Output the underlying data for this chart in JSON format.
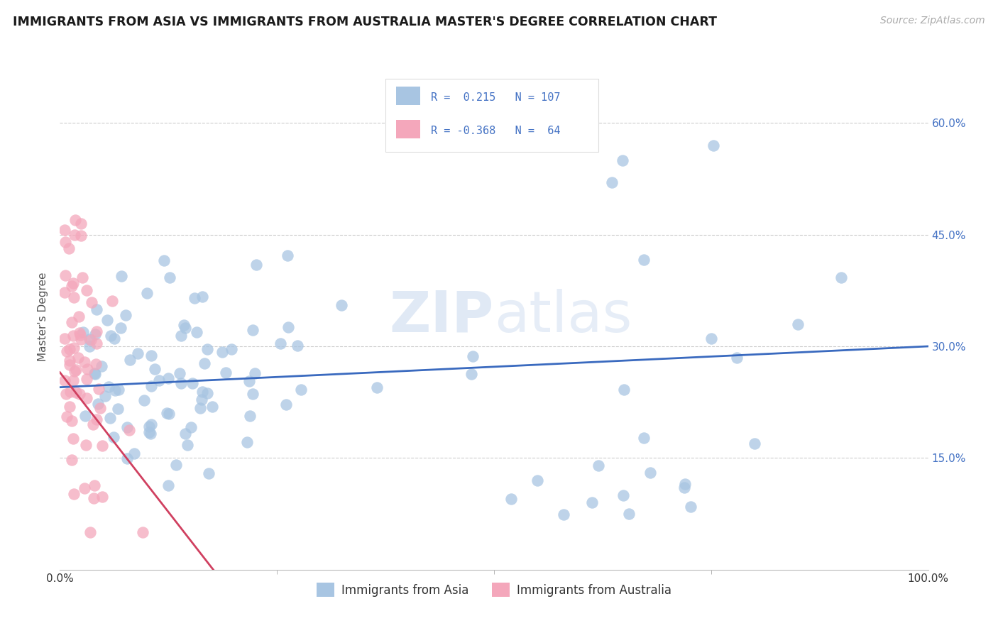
{
  "title": "IMMIGRANTS FROM ASIA VS IMMIGRANTS FROM AUSTRALIA MASTER'S DEGREE CORRELATION CHART",
  "source": "Source: ZipAtlas.com",
  "ylabel": "Master's Degree",
  "y_ticks": [
    "15.0%",
    "30.0%",
    "45.0%",
    "60.0%"
  ],
  "y_tick_vals": [
    0.15,
    0.3,
    0.45,
    0.6
  ],
  "x_range": [
    0.0,
    1.0
  ],
  "y_range": [
    0.0,
    0.68
  ],
  "watermark": "ZIPatlas",
  "asia_color": "#a8c5e2",
  "australia_color": "#f4a7bb",
  "asia_line_color": "#3a6abf",
  "australia_line_color": "#d04060",
  "background_color": "#ffffff",
  "grid_color": "#cccccc",
  "title_color": "#1a1a1a",
  "source_color": "#aaaaaa",
  "ylabel_color": "#555555",
  "ytick_color": "#4472c4",
  "xtick_color": "#333333",
  "legend_edge_color": "#dddddd",
  "N_asia": 107,
  "N_aus": 64,
  "asia_seed": 42,
  "aus_seed": 7,
  "watermark_color": "#d8e4f0",
  "watermark_alpha": 0.6
}
